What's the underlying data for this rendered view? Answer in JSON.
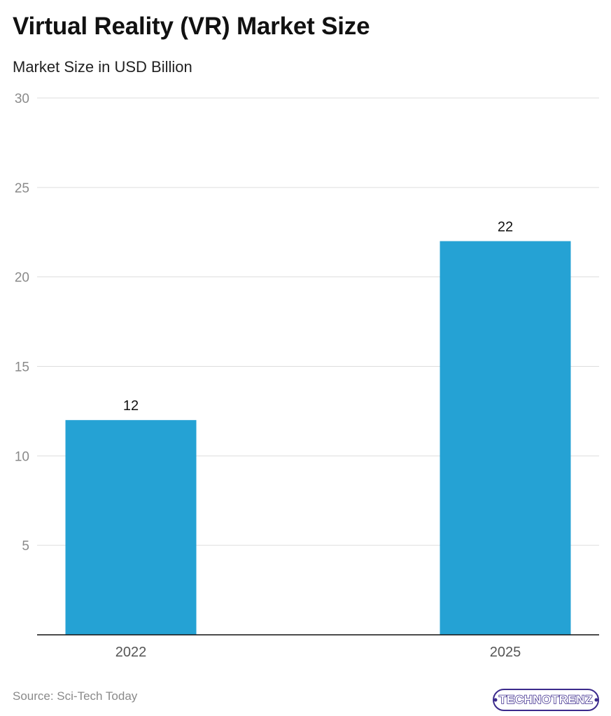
{
  "title": "Virtual Reality (VR) Market Size",
  "subtitle": "Market Size in USD Billion",
  "source": "Source: Sci-Tech Today",
  "logo_text": "TECHNOTRENZ",
  "colors": {
    "bar": "#25a2d4",
    "grid": "#dddddd",
    "axis": "#111111",
    "tick_text": "#8a8a8a",
    "label_text": "#111111"
  },
  "chart_data": {
    "type": "bar",
    "categories": [
      "2022",
      "2025"
    ],
    "values": [
      12,
      22
    ],
    "data_labels": [
      "12",
      "22"
    ],
    "ylim": [
      0,
      30
    ],
    "yticks": [
      5,
      10,
      15,
      20,
      25,
      30
    ],
    "grid": true,
    "legend": "none"
  }
}
